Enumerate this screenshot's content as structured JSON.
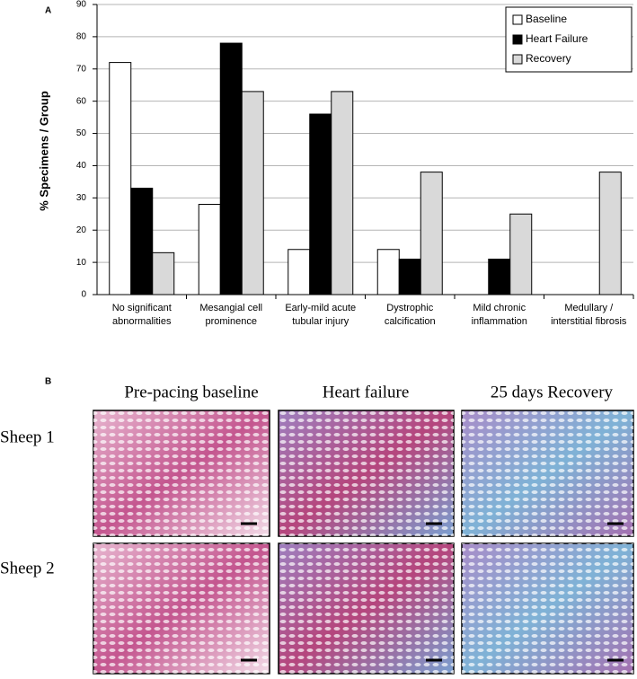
{
  "chart_data": {
    "type": "bar",
    "panel_label": "A",
    "y_label": "% Specimens / Group",
    "categories": [
      "No significant abnormalities",
      "Mesangial cell prominence",
      "Early-mild acute tubular injury",
      "Dystrophic calcification",
      "Mild chronic inflammation",
      "Medullary / interstitial fibrosis"
    ],
    "series": [
      {
        "name": "Baseline",
        "color": "#ffffff",
        "values": [
          72,
          28,
          14,
          14,
          0,
          0
        ]
      },
      {
        "name": "Heart Failure",
        "color": "#000000",
        "values": [
          33,
          78,
          56,
          11,
          11,
          0
        ]
      },
      {
        "name": "Recovery",
        "color": "#d9d9d9",
        "values": [
          13,
          63,
          63,
          38,
          25,
          38
        ]
      }
    ],
    "ylim": [
      0,
      90
    ],
    "yticks": [
      0,
      10,
      20,
      30,
      40,
      50,
      60,
      70,
      80,
      90
    ],
    "grid": true,
    "legend": "upper right"
  },
  "panel_b": {
    "label": "B",
    "columns": [
      "Pre-pacing  baseline",
      "Heart failure",
      "25 days Recovery"
    ],
    "rows": [
      "Sheep 1",
      "Sheep 2"
    ]
  }
}
